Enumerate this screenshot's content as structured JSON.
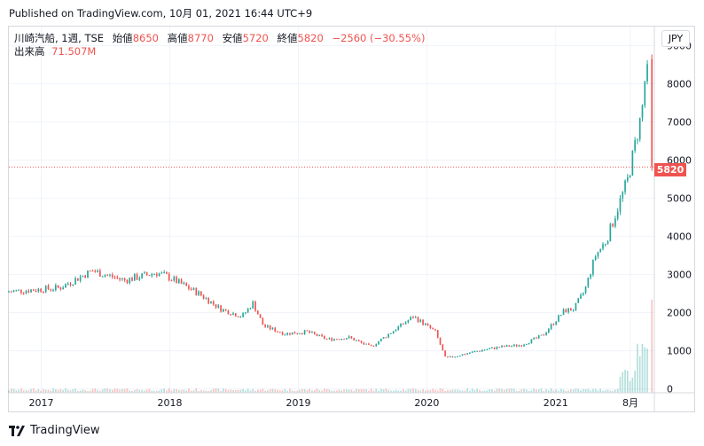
{
  "header": {
    "published_text": "Published on TradingView.com, 10月 01, 2021 16:44 UTC+9"
  },
  "legend": {
    "symbol": "川崎汽船, 1週, TSE",
    "open_label": "始値",
    "open_value": "8650",
    "high_label": "高値",
    "high_value": "8770",
    "low_label": "安値",
    "low_value": "5720",
    "close_label": "終値",
    "close_value": "5820",
    "change": "−2560 (−30.55%)",
    "volume_label": "出来高",
    "volume_value": "71.507M"
  },
  "currency_button": "JPY",
  "last_price_tag": "5820",
  "brand_text": "TradingView",
  "colors": {
    "up": "#26a69a",
    "down": "#ef5350",
    "grid": "#f0f3fa",
    "text": "#131722"
  },
  "chart_data": {
    "type": "candlestick",
    "title": "川崎汽船, 1週, TSE",
    "currency": "JPY",
    "y_ticks": [
      0,
      1000,
      2000,
      3000,
      4000,
      5000,
      6000,
      7000,
      8000,
      9000
    ],
    "ylim": [
      -100,
      9500
    ],
    "x_ticks": [
      "2017",
      "2018",
      "2019",
      "2020",
      "2021",
      "8月"
    ],
    "last_price": 5820,
    "volume_last": "71.507M",
    "price_path": [
      {
        "date": "2016-10",
        "price": 2550
      },
      {
        "date": "2017-03",
        "price": 2650
      },
      {
        "date": "2017-06",
        "price": 3100
      },
      {
        "date": "2017-09",
        "price": 2850
      },
      {
        "date": "2017-12",
        "price": 3050
      },
      {
        "date": "2018-01",
        "price": 2950
      },
      {
        "date": "2018-04",
        "price": 2500
      },
      {
        "date": "2018-06",
        "price": 2100
      },
      {
        "date": "2018-08",
        "price": 1900
      },
      {
        "date": "2018-09",
        "price": 2250
      },
      {
        "date": "2018-10",
        "price": 1650
      },
      {
        "date": "2018-12",
        "price": 1450
      },
      {
        "date": "2019-02",
        "price": 1500
      },
      {
        "date": "2019-04",
        "price": 1300
      },
      {
        "date": "2019-06",
        "price": 1350
      },
      {
        "date": "2019-08",
        "price": 1100
      },
      {
        "date": "2019-10",
        "price": 1500
      },
      {
        "date": "2019-12",
        "price": 1900
      },
      {
        "date": "2020-02",
        "price": 1500
      },
      {
        "date": "2020-03",
        "price": 800
      },
      {
        "date": "2020-06",
        "price": 1000
      },
      {
        "date": "2020-08",
        "price": 1100
      },
      {
        "date": "2020-10",
        "price": 1150
      },
      {
        "date": "2020-12",
        "price": 1400
      },
      {
        "date": "2021-02",
        "price": 2050
      },
      {
        "date": "2021-03",
        "price": 2100
      },
      {
        "date": "2021-04",
        "price": 2600
      },
      {
        "date": "2021-05",
        "price": 3500
      },
      {
        "date": "2021-06",
        "price": 3900
      },
      {
        "date": "2021-07",
        "price": 4700
      },
      {
        "date": "2021-08",
        "price": 5500
      },
      {
        "date": "2021-09-10",
        "price": 7300
      },
      {
        "date": "2021-09-24",
        "price": 8650
      },
      {
        "date": "2021-10-01",
        "price": 5820
      }
    ],
    "final_candle": {
      "open": 8650,
      "high": 8770,
      "low": 5720,
      "close": 5820
    }
  }
}
